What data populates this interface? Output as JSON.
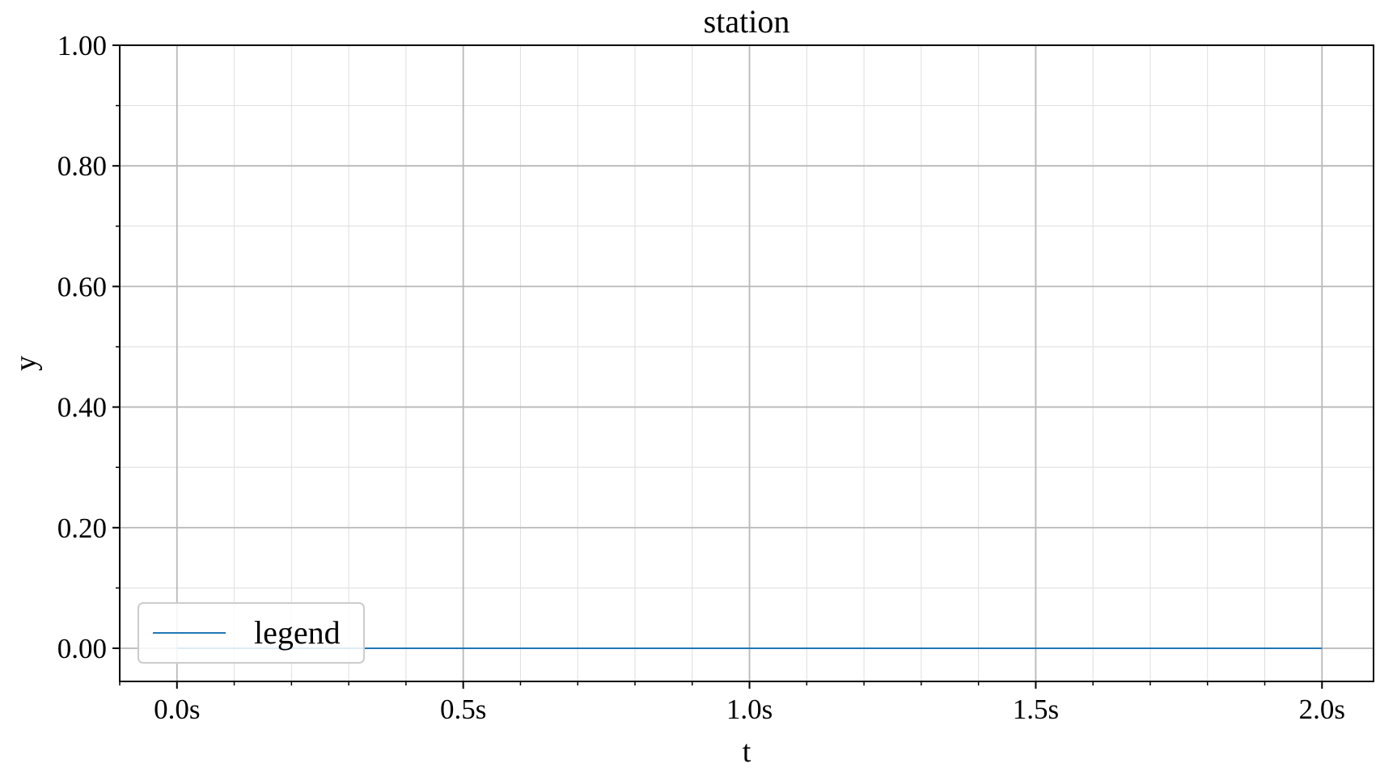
{
  "chart_data": {
    "type": "line",
    "title": "station",
    "xlabel": "t",
    "ylabel": "y",
    "xlim": [
      -0.1,
      2.09
    ],
    "ylim": [
      -0.055,
      1.0
    ],
    "xticks": [
      0.0,
      0.5,
      1.0,
      1.5,
      2.0
    ],
    "xtick_labels": [
      "0.0s",
      "0.5s",
      "1.0s",
      "1.5s",
      "2.0s"
    ],
    "x_minor_step": 0.1,
    "yticks": [
      0.0,
      0.2,
      0.4,
      0.6,
      0.8,
      1.0
    ],
    "ytick_labels": [
      "0.00",
      "0.20",
      "0.40",
      "0.60",
      "0.80",
      "1.00"
    ],
    "y_minor_step": 0.1,
    "grid": true,
    "legend_position": "lower-left",
    "series": [
      {
        "name": "legend",
        "color": "#1f77b4",
        "x": [
          0.0,
          0.5,
          1.0,
          1.5,
          2.0
        ],
        "y": [
          0.0,
          0.0,
          0.0,
          0.0,
          0.0
        ]
      }
    ]
  }
}
